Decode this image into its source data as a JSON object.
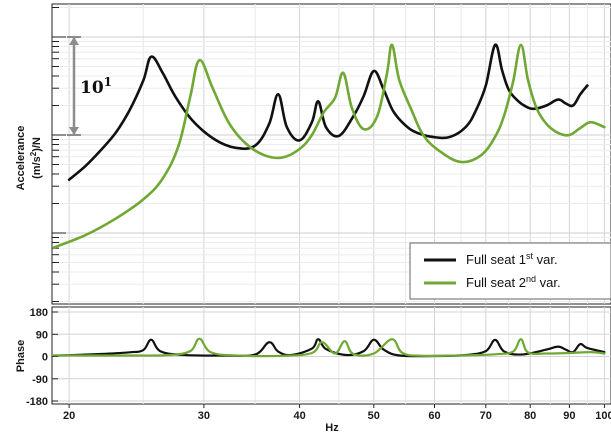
{
  "chart_data": [
    {
      "type": "line",
      "panel": "magnitude",
      "xscale": "log",
      "yscale": "log",
      "xlim": [
        19,
        102
      ],
      "ylabel_line1": "Accelerance",
      "ylabel_line2_prefix": "(m/s",
      "ylabel_line2_sup": "2",
      "ylabel_line2_suffix": ")/N",
      "grid": true,
      "annotation": {
        "base": "10",
        "exp": "1"
      },
      "legend_position": "bottom-right",
      "series": [
        {
          "name_base": "Full seat 1",
          "name_sup": "st",
          "name_suffix": " var.",
          "color": "#111111",
          "x": [
            20,
            21,
            22,
            23,
            24,
            25,
            25.6,
            26.5,
            27.5,
            29,
            31,
            33,
            35,
            36.5,
            37.5,
            38.5,
            40,
            41.5,
            42.3,
            43.3,
            45,
            47,
            48.5,
            50,
            51.5,
            53,
            55,
            57,
            60,
            63,
            66,
            68,
            70,
            72,
            73.5,
            75,
            77,
            79,
            81,
            84,
            87,
            89,
            91,
            93,
            95
          ],
          "y": [
            0.35,
            0.48,
            0.7,
            1.05,
            1.8,
            3.6,
            6.3,
            4.3,
            2.5,
            1.4,
            0.9,
            0.74,
            0.78,
            1.3,
            2.6,
            1.2,
            0.88,
            1.35,
            2.2,
            1.2,
            0.98,
            1.55,
            2.5,
            4.5,
            2.9,
            1.75,
            1.25,
            1.05,
            0.95,
            0.96,
            1.22,
            1.8,
            3.2,
            8.3,
            4.6,
            2.9,
            2.25,
            1.95,
            1.85,
            2.0,
            2.3,
            2.1,
            2.0,
            2.6,
            3.2
          ]
        },
        {
          "name_base": "Full seat 2",
          "name_sup": "nd",
          "name_suffix": " var.",
          "color": "#6fa832",
          "x": [
            19,
            21,
            23,
            25,
            26.5,
            27.8,
            28.8,
            29.6,
            30.8,
            32.3,
            34,
            36,
            38,
            40,
            41.5,
            43,
            44.5,
            45.6,
            46.8,
            48.5,
            50.5,
            52,
            52.8,
            54,
            56,
            58,
            61,
            65,
            69,
            72,
            74,
            76,
            77.8,
            79.5,
            81.5,
            84,
            87,
            90,
            93,
            96,
            100
          ],
          "y": [
            0.07,
            0.095,
            0.14,
            0.22,
            0.36,
            0.78,
            2.5,
            5.8,
            3.0,
            1.35,
            0.82,
            0.62,
            0.59,
            0.72,
            1.0,
            1.7,
            2.4,
            4.3,
            1.9,
            1.15,
            1.55,
            4.2,
            8.3,
            3.6,
            1.8,
            1.0,
            0.68,
            0.53,
            0.62,
            0.96,
            1.6,
            3.5,
            8.3,
            3.6,
            1.9,
            1.3,
            1.05,
            1.0,
            1.18,
            1.35,
            1.2
          ]
        }
      ]
    },
    {
      "type": "line",
      "panel": "phase",
      "xscale": "log",
      "xlim": [
        19,
        102
      ],
      "ylim": [
        -180,
        180
      ],
      "ylabel": "Phase",
      "xlabel": "Hz",
      "grid": true,
      "y_ticks": [
        "180",
        "90",
        "0",
        "-90",
        "-180"
      ],
      "x_tick_labels": [
        "20",
        "30",
        "40",
        "50",
        "60",
        "70",
        "80",
        "90",
        "100"
      ],
      "series": [
        {
          "color": "#111111",
          "x": [
            19,
            22,
            24,
            25,
            25.6,
            26.3,
            28,
            32,
            35,
            36.5,
            37.5,
            39,
            41.5,
            42.3,
            43.3,
            46,
            48.5,
            50,
            51.5,
            54,
            60,
            66,
            70,
            72,
            74,
            78,
            84,
            87,
            89,
            91,
            93,
            95,
            100
          ],
          "y": [
            3,
            10,
            17,
            26,
            68,
            22,
            7,
            4,
            8,
            58,
            20,
            6,
            32,
            70,
            30,
            6,
            22,
            68,
            28,
            4,
            2,
            6,
            22,
            67,
            20,
            8,
            28,
            40,
            28,
            18,
            50,
            34,
            18
          ]
        },
        {
          "color": "#6fa832",
          "x": [
            19,
            24,
            27,
            28.8,
            29.6,
            30.6,
            33,
            38,
            41.5,
            42.8,
            44.5,
            45.8,
            47,
            50,
            52.8,
            54.5,
            58,
            66,
            72,
            76,
            77.8,
            79.5,
            84,
            90,
            96,
            100
          ],
          "y": [
            5,
            4,
            6,
            22,
            72,
            18,
            4,
            3,
            14,
            58,
            12,
            62,
            10,
            12,
            70,
            14,
            3,
            5,
            9,
            20,
            70,
            16,
            12,
            14,
            18,
            12
          ]
        }
      ]
    }
  ]
}
